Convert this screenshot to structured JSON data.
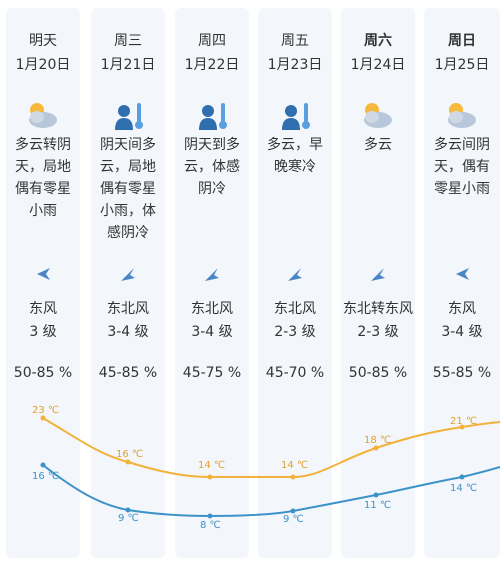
{
  "days": [
    {
      "label": "明天",
      "date": "1月20日",
      "weather_icon": "partly-cloudy-icon",
      "desc": "多云转阴天，局地偶有零星小雨",
      "wind": "东风",
      "wind_level": "3 级",
      "humidity": "50-85 %",
      "high": "23 ℃",
      "low": "16 ℃",
      "bold": false
    },
    {
      "label": "周三",
      "date": "1月21日",
      "weather_icon": "cold-warning-icon",
      "desc": "阴天间多云，局地偶有零星小雨，体感阴冷",
      "wind": "东北风",
      "wind_level": "3-4 级",
      "humidity": "45-85 %",
      "high": "16 ℃",
      "low": "9 ℃",
      "bold": false
    },
    {
      "label": "周四",
      "date": "1月22日",
      "weather_icon": "cold-warning-icon",
      "desc": "阴天到多云，体感阴冷",
      "wind": "东北风",
      "wind_level": "3-4 级",
      "humidity": "45-75 %",
      "high": "14 ℃",
      "low": "8 ℃",
      "bold": false
    },
    {
      "label": "周五",
      "date": "1月23日",
      "weather_icon": "cold-warning-icon",
      "desc": "多云，早晚寒冷",
      "wind": "东北风",
      "wind_level": "2-3 级",
      "humidity": "45-70 %",
      "high": "14 ℃",
      "low": "9 ℃",
      "bold": false
    },
    {
      "label": "周六",
      "date": "1月24日",
      "weather_icon": "partly-cloudy-icon",
      "desc": "多云",
      "wind": "东北转东风",
      "wind_level": "2-3 级",
      "humidity": "50-85 %",
      "high": "18 ℃",
      "low": "11 ℃",
      "bold": true
    },
    {
      "label": "周日",
      "date": "1月25日",
      "weather_icon": "partly-cloudy-icon",
      "desc": "多云间阴天，偶有零星小雨",
      "wind": "东风",
      "wind_level": "3-4 级",
      "humidity": "55-85 %",
      "high": "21 ℃",
      "low": "14 ℃",
      "bold": true
    }
  ],
  "high_temps": [
    23,
    16,
    14,
    14,
    18,
    21
  ],
  "low_temps": [
    16,
    9,
    8,
    9,
    11,
    14
  ],
  "colors": {
    "high_line": "#f2b13a",
    "low_line": "#3b93c9",
    "arrow": "#4a86c5",
    "column_bg": "#f3f6fa"
  }
}
